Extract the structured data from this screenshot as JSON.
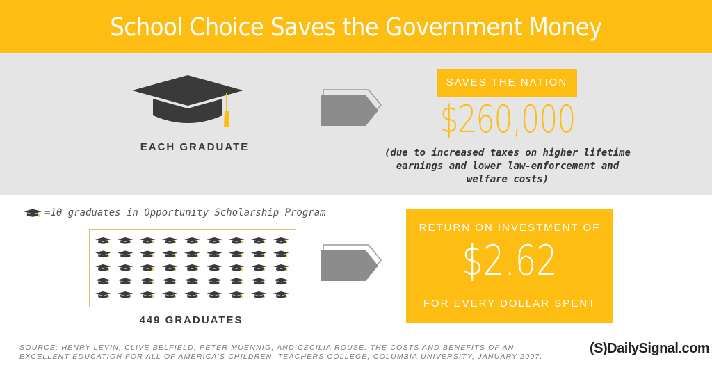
{
  "title": "School Choice Saves the Government Money",
  "top_section": {
    "label": "EACH GRADUATE",
    "saves_label": "SAVES THE NATION",
    "amount": "$260,000",
    "note": "(due to increased taxes on higher lifetime earnings and lower law-enforcement and welfare costs)"
  },
  "bottom_section": {
    "legend": "=10 graduates in Opportunity Scholarship Program",
    "graduates_count": "449 GRADUATES",
    "roi_top": "RETURN ON INVESTMENT OF",
    "roi_value": "$2.62",
    "roi_bottom": "FOR EVERY DOLLAR SPENT"
  },
  "grid": {
    "rows": 5,
    "cols": 9,
    "total_icons": 45
  },
  "source": "SOURCE: HENRY LEVIN, CLIVE BELFIELD, PETER MUENNIG, AND CECILIA ROUSE. THE COSTS AND BENEFITS OF AN EXCELLENT EDUCATION FOR ALL OF AMERICA'S CHILDREN, TEACHERS COLLEGE, COLUMBIA UNIVERSITY, JANUARY 2007.",
  "brand": {
    "text": "DailySignal.com",
    "mark": "(S)"
  },
  "colors": {
    "accent": "#fdbd12",
    "band": "#e5e5e5",
    "icon": "#3a3a3a",
    "arrow": "#8c8c8c"
  },
  "icons": [
    "graduation-cap-icon",
    "arrow-icon"
  ]
}
